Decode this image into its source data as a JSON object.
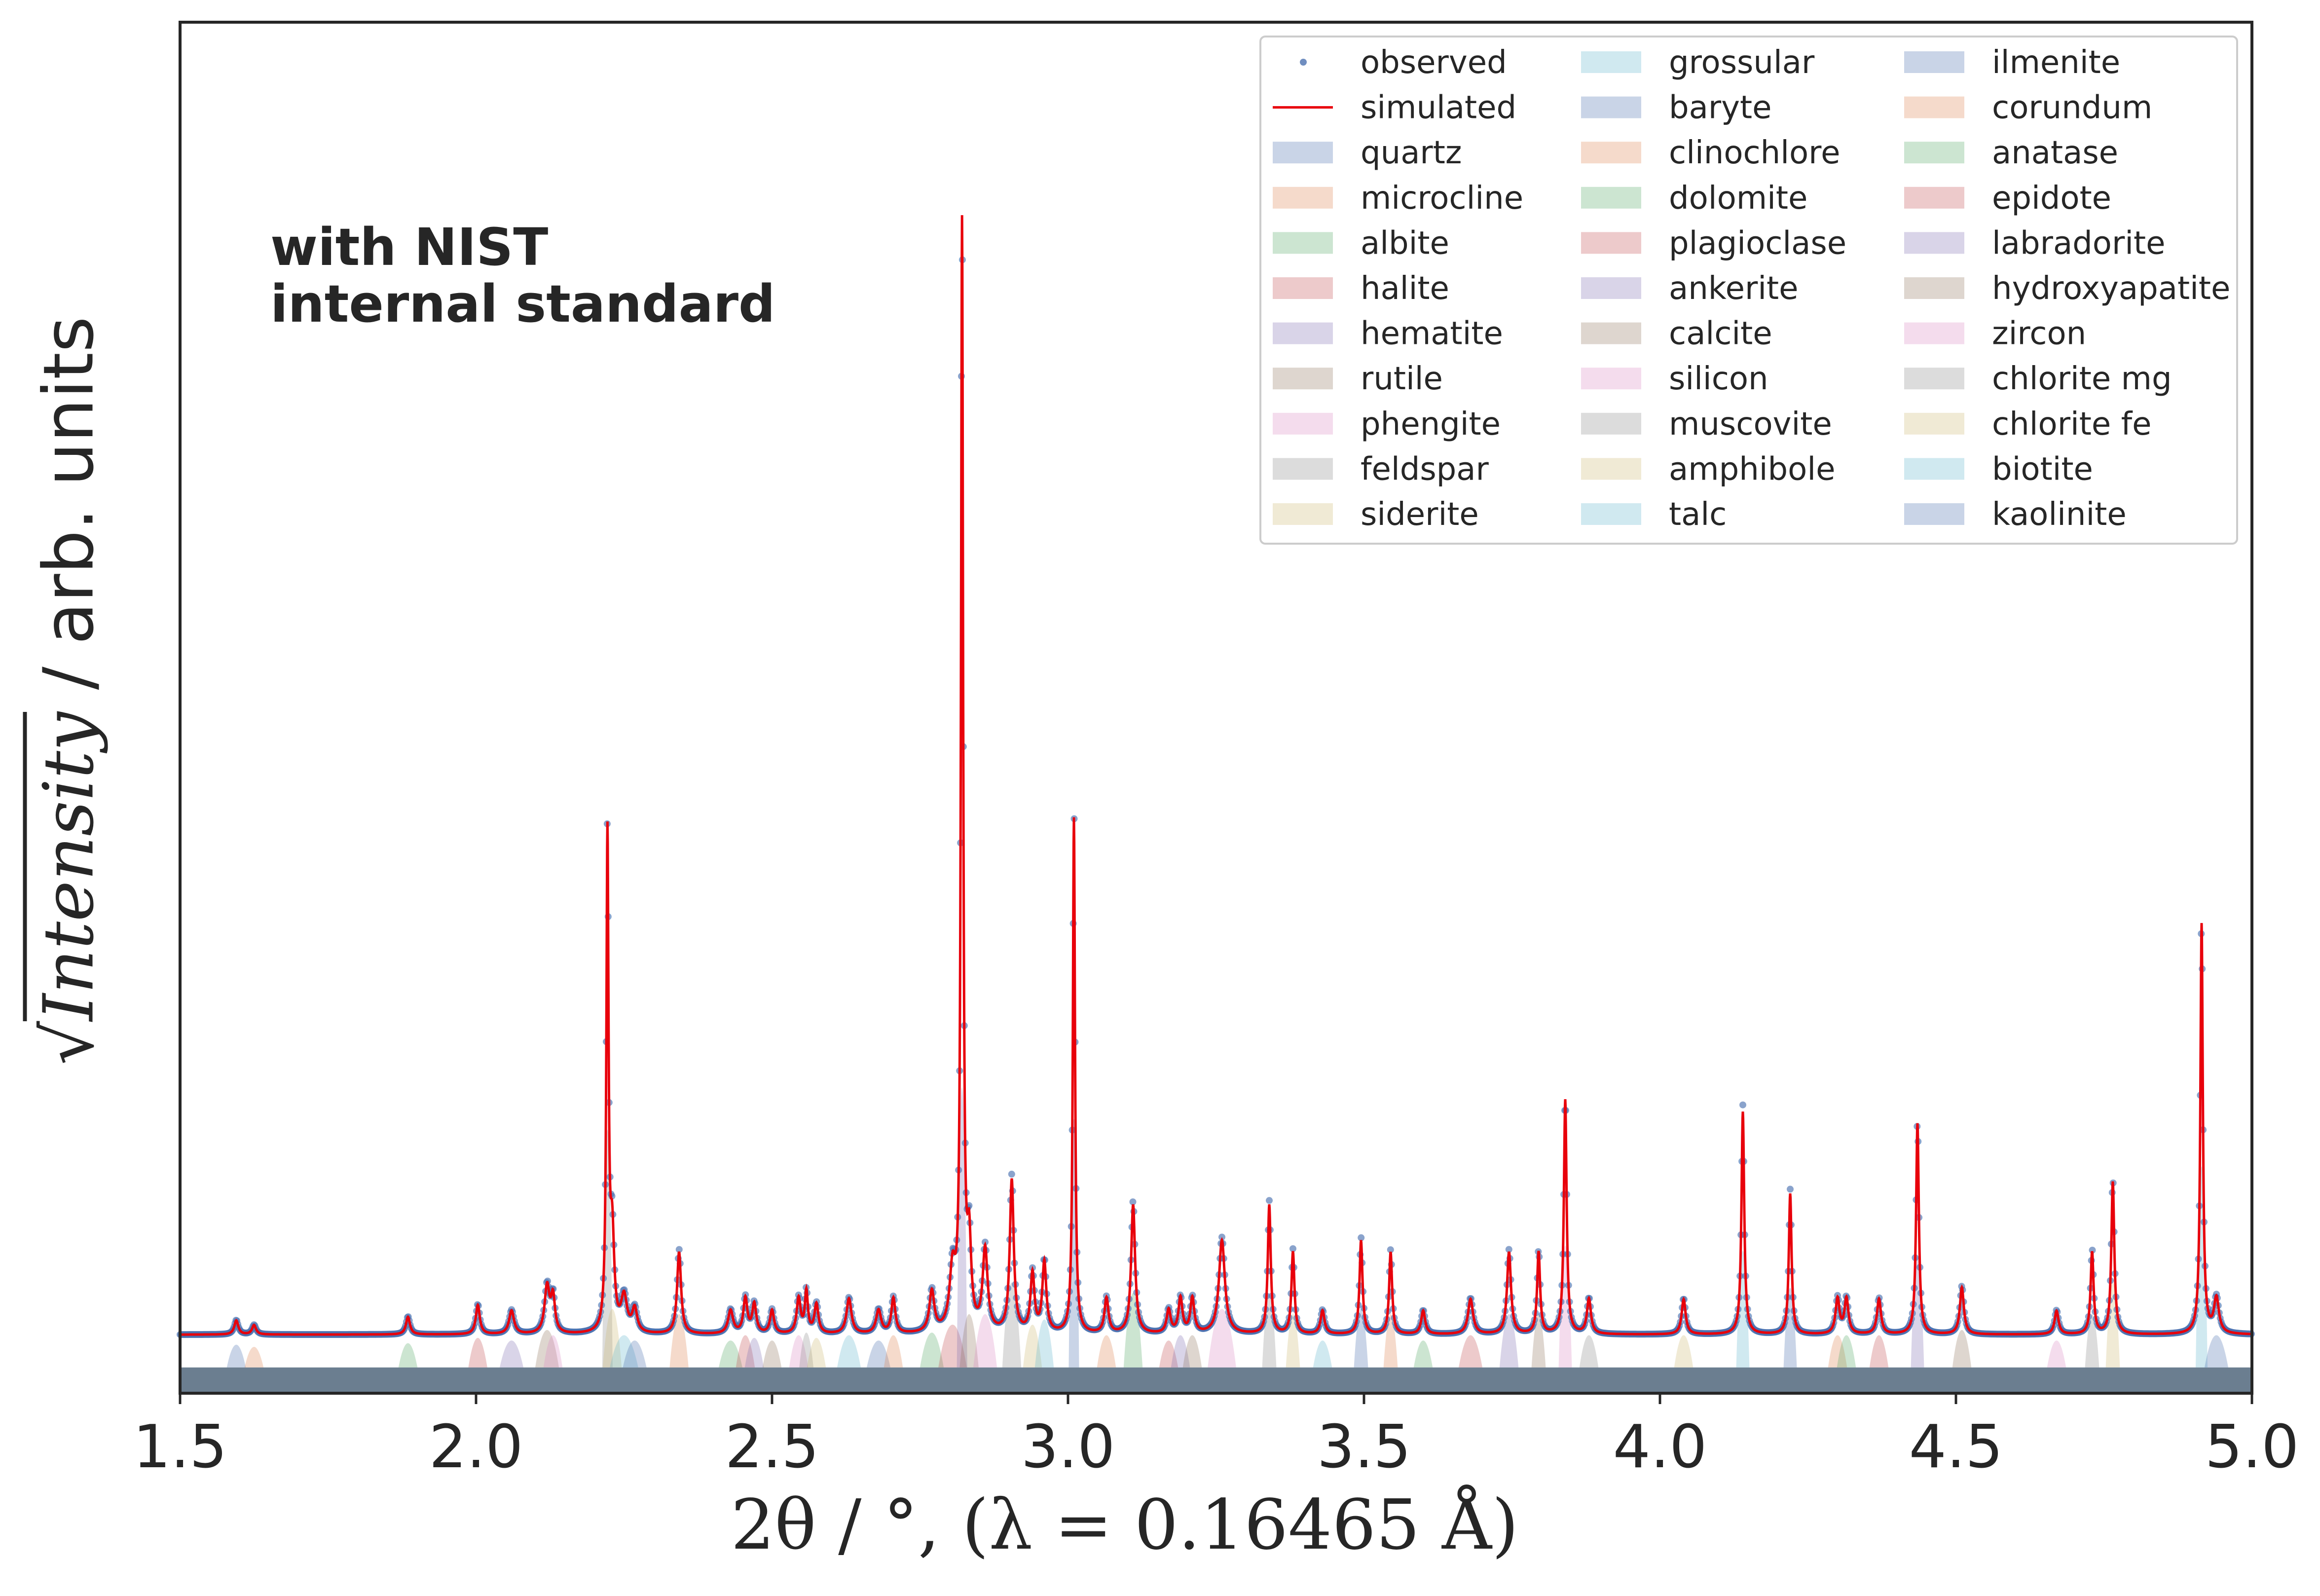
{
  "chart_data": {
    "type": "line",
    "title": "",
    "annotation": [
      "with NIST",
      "internal standard"
    ],
    "xlabel": "2θ / °, (λ = 0.16465 Å)",
    "ylabel": {
      "sqrt": "Intensity",
      "rest": " / arb. units"
    },
    "xlim": [
      1.5,
      5.0
    ],
    "ylim": [
      -0.05,
      1.12
    ],
    "xticks": [
      "1.5",
      "2.0",
      "2.5",
      "3.0",
      "3.5",
      "4.0",
      "4.5",
      "5.0"
    ],
    "yticks": [],
    "grid": false,
    "legend_position": "top-right",
    "legend": [
      "observed",
      "simulated",
      "quartz",
      "microcline",
      "albite",
      "halite",
      "hematite",
      "rutile",
      "phengite",
      "feldspar",
      "siderite",
      "grossular",
      "baryte",
      "clinochlore",
      "dolomite",
      "plagioclase",
      "ankerite",
      "calcite",
      "silicon",
      "muscovite",
      "amphibole",
      "talc",
      "ilmenite",
      "corundum",
      "anatase",
      "epidote",
      "labradorite",
      "hydroxyapatite",
      "zircon",
      "chlorite mg",
      "chlorite fe",
      "biotite",
      "kaolinite"
    ],
    "background": 0.0,
    "series": [
      {
        "name": "observed",
        "style": "markers",
        "color": "#4c72b0"
      },
      {
        "name": "simulated",
        "style": "line",
        "color": "#e8000b"
      }
    ],
    "peaks": [
      {
        "x": 1.595,
        "h": 0.012,
        "w": 0.004
      },
      {
        "x": 1.625,
        "h": 0.008,
        "w": 0.004
      },
      {
        "x": 1.885,
        "h": 0.015,
        "w": 0.004
      },
      {
        "x": 2.003,
        "h": 0.025,
        "w": 0.004
      },
      {
        "x": 2.06,
        "h": 0.02,
        "w": 0.005
      },
      {
        "x": 2.12,
        "h": 0.04,
        "w": 0.005
      },
      {
        "x": 2.13,
        "h": 0.03,
        "w": 0.004
      },
      {
        "x": 2.222,
        "h": 0.42,
        "w": 0.0022
      },
      {
        "x": 2.23,
        "h": 0.08,
        "w": 0.004
      },
      {
        "x": 2.25,
        "h": 0.03,
        "w": 0.006
      },
      {
        "x": 2.268,
        "h": 0.02,
        "w": 0.005
      },
      {
        "x": 2.343,
        "h": 0.07,
        "w": 0.004
      },
      {
        "x": 2.43,
        "h": 0.02,
        "w": 0.005
      },
      {
        "x": 2.455,
        "h": 0.03,
        "w": 0.004
      },
      {
        "x": 2.47,
        "h": 0.025,
        "w": 0.004
      },
      {
        "x": 2.5,
        "h": 0.02,
        "w": 0.004
      },
      {
        "x": 2.545,
        "h": 0.03,
        "w": 0.004
      },
      {
        "x": 2.558,
        "h": 0.035,
        "w": 0.003
      },
      {
        "x": 2.575,
        "h": 0.025,
        "w": 0.004
      },
      {
        "x": 2.63,
        "h": 0.03,
        "w": 0.005
      },
      {
        "x": 2.68,
        "h": 0.02,
        "w": 0.005
      },
      {
        "x": 2.705,
        "h": 0.03,
        "w": 0.004
      },
      {
        "x": 2.77,
        "h": 0.035,
        "w": 0.005
      },
      {
        "x": 2.805,
        "h": 0.05,
        "w": 0.006
      },
      {
        "x": 2.821,
        "h": 0.94,
        "w": 0.0022
      },
      {
        "x": 2.833,
        "h": 0.07,
        "w": 0.004
      },
      {
        "x": 2.86,
        "h": 0.07,
        "w": 0.005
      },
      {
        "x": 2.905,
        "h": 0.13,
        "w": 0.004
      },
      {
        "x": 2.94,
        "h": 0.05,
        "w": 0.004
      },
      {
        "x": 2.96,
        "h": 0.06,
        "w": 0.004
      },
      {
        "x": 3.01,
        "h": 0.44,
        "w": 0.0022
      },
      {
        "x": 3.065,
        "h": 0.03,
        "w": 0.004
      },
      {
        "x": 3.11,
        "h": 0.11,
        "w": 0.004
      },
      {
        "x": 3.17,
        "h": 0.02,
        "w": 0.004
      },
      {
        "x": 3.19,
        "h": 0.03,
        "w": 0.004
      },
      {
        "x": 3.21,
        "h": 0.03,
        "w": 0.004
      },
      {
        "x": 3.26,
        "h": 0.08,
        "w": 0.006
      },
      {
        "x": 3.34,
        "h": 0.11,
        "w": 0.003
      },
      {
        "x": 3.38,
        "h": 0.07,
        "w": 0.003
      },
      {
        "x": 3.43,
        "h": 0.02,
        "w": 0.004
      },
      {
        "x": 3.495,
        "h": 0.08,
        "w": 0.003
      },
      {
        "x": 3.545,
        "h": 0.07,
        "w": 0.003
      },
      {
        "x": 3.6,
        "h": 0.02,
        "w": 0.004
      },
      {
        "x": 3.68,
        "h": 0.03,
        "w": 0.005
      },
      {
        "x": 3.745,
        "h": 0.07,
        "w": 0.004
      },
      {
        "x": 3.795,
        "h": 0.07,
        "w": 0.003
      },
      {
        "x": 3.84,
        "h": 0.2,
        "w": 0.0028
      },
      {
        "x": 3.88,
        "h": 0.03,
        "w": 0.004
      },
      {
        "x": 4.04,
        "h": 0.03,
        "w": 0.004
      },
      {
        "x": 4.14,
        "h": 0.19,
        "w": 0.0028
      },
      {
        "x": 4.22,
        "h": 0.12,
        "w": 0.0028
      },
      {
        "x": 4.3,
        "h": 0.03,
        "w": 0.004
      },
      {
        "x": 4.315,
        "h": 0.03,
        "w": 0.004
      },
      {
        "x": 4.37,
        "h": 0.03,
        "w": 0.004
      },
      {
        "x": 4.435,
        "h": 0.18,
        "w": 0.0028
      },
      {
        "x": 4.51,
        "h": 0.04,
        "w": 0.004
      },
      {
        "x": 4.67,
        "h": 0.02,
        "w": 0.004
      },
      {
        "x": 4.73,
        "h": 0.07,
        "w": 0.003
      },
      {
        "x": 4.765,
        "h": 0.13,
        "w": 0.003
      },
      {
        "x": 4.915,
        "h": 0.35,
        "w": 0.0025
      },
      {
        "x": 4.94,
        "h": 0.03,
        "w": 0.005
      }
    ]
  },
  "colors": {
    "axes": "#262626",
    "legend_border": "#cccccc",
    "background_fill": "#6b7e90",
    "phase_palette": [
      "#4c72b0",
      "#dd8452",
      "#55a868",
      "#c44e52",
      "#8172b3",
      "#937860",
      "#da8bc3",
      "#8c8c8c",
      "#ccb974",
      "#64b5cd"
    ]
  }
}
